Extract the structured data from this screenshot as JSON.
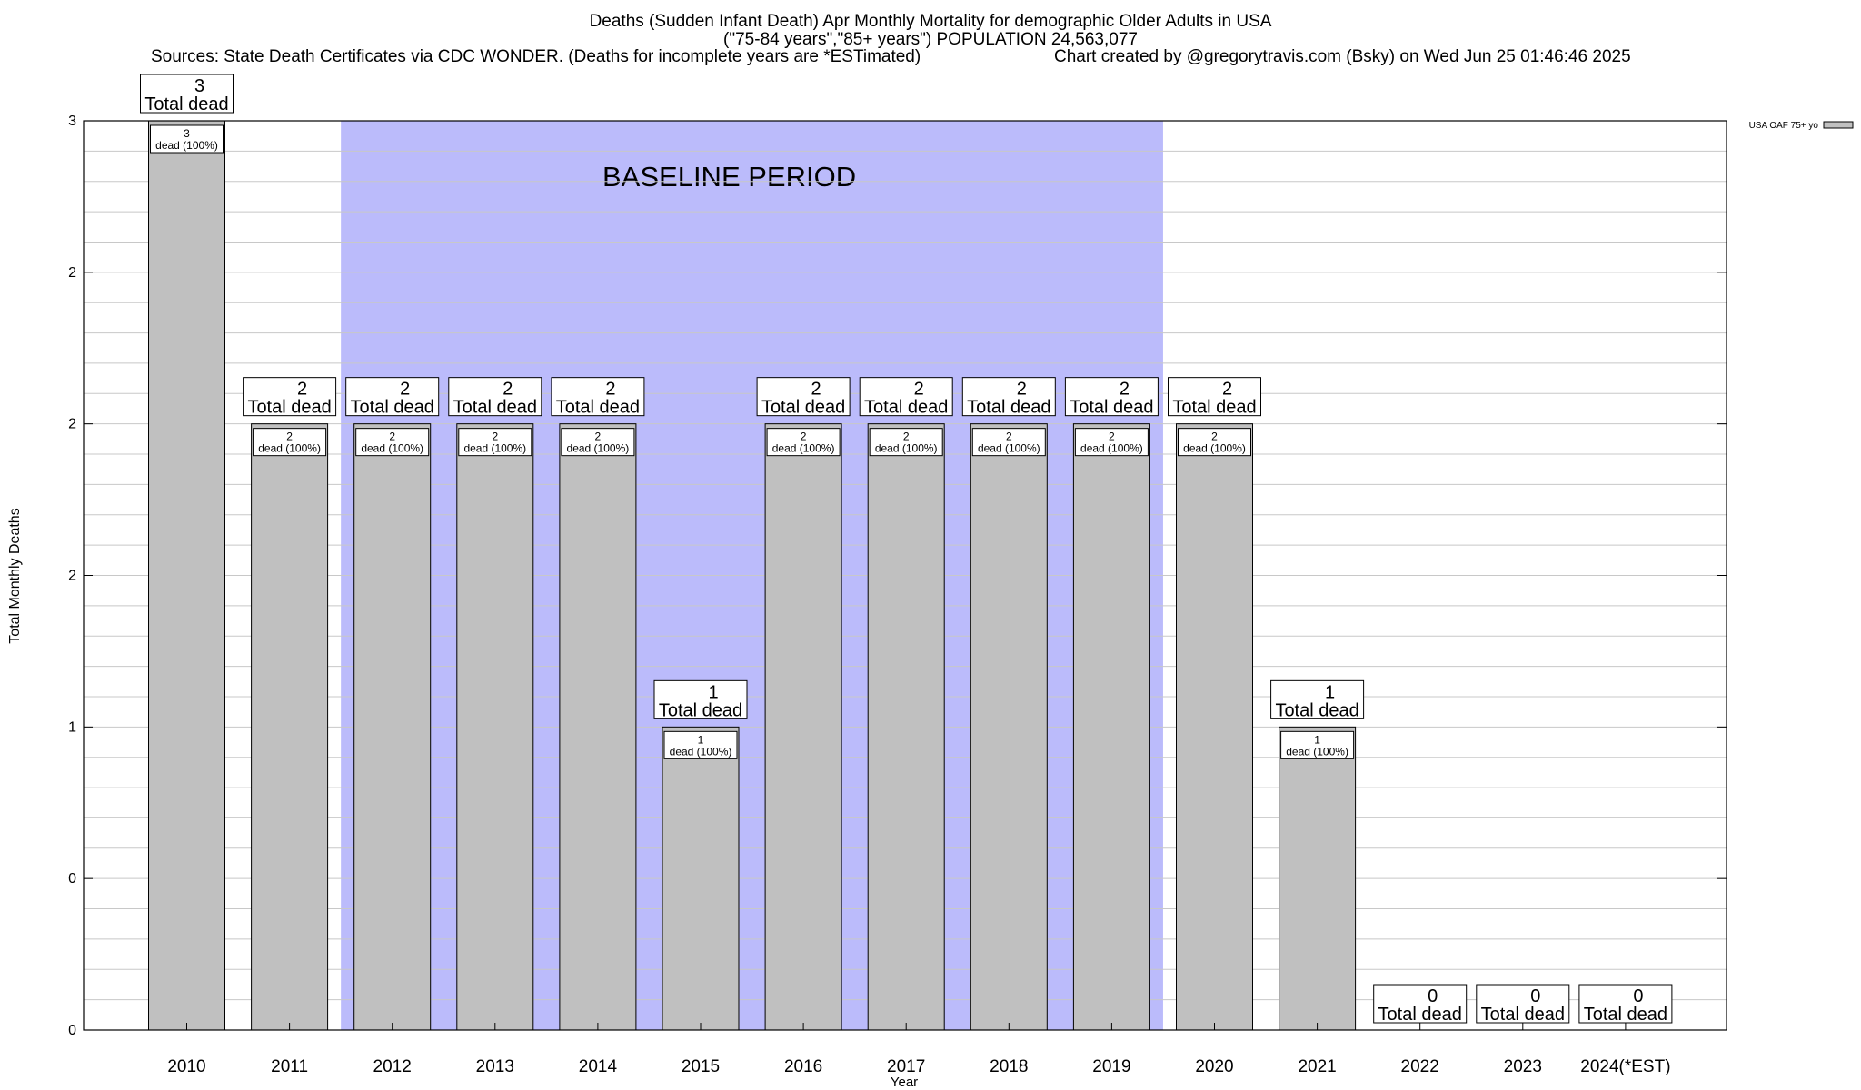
{
  "header": {
    "title_line1": "Deaths (Sudden Infant Death) Apr Monthly Mortality for demographic Older Adults in USA",
    "title_line2": "(\"75-84 years\",\"85+ years\") POPULATION 24,563,077",
    "sources": "Sources: State Death Certificates via CDC WONDER. (Deaths for incomplete years are *ESTimated)",
    "credit": "Chart created by @gregorytravis.com (Bsky) on Wed Jun 25 01:46:46 2025"
  },
  "chart_data": {
    "type": "bar",
    "title": "Deaths (Sudden Infant Death) Apr Monthly Mortality for demographic Older Adults in USA",
    "xlabel": "Year",
    "ylabel": "Total Monthly Deaths",
    "categories": [
      "2010",
      "2011",
      "2012",
      "2013",
      "2014",
      "2015",
      "2016",
      "2017",
      "2018",
      "2019",
      "2020",
      "2021",
      "2022",
      "2023",
      "2024(*EST)"
    ],
    "series": [
      {
        "name": "USA OAF 75+ yo",
        "values": [
          3,
          2,
          2,
          2,
          2,
          1,
          2,
          2,
          2,
          2,
          2,
          1,
          0,
          0,
          0
        ]
      }
    ],
    "top_labels": [
      "3\nTotal dead",
      "2\nTotal dead",
      "2\nTotal dead",
      "2\nTotal dead",
      "2\nTotal dead",
      "1\nTotal dead",
      "2\nTotal dead",
      "2\nTotal dead",
      "2\nTotal dead",
      "2\nTotal dead",
      "2\nTotal dead",
      "1\nTotal dead",
      "0\nTotal dead",
      "0\nTotal dead",
      "0\nTotal dead"
    ],
    "inner_labels": [
      "3\ndead (100%)",
      "2\ndead (100%)",
      "2\ndead (100%)",
      "2\ndead (100%)",
      "2\ndead (100%)",
      "1\ndead (100%)",
      "2\ndead (100%)",
      "2\ndead (100%)",
      "2\ndead (100%)",
      "2\ndead (100%)",
      "2\ndead (100%)",
      "1\ndead (100%)",
      "",
      "",
      ""
    ],
    "ylim": [
      0,
      3
    ],
    "y_gridlines": [
      0,
      0.1,
      0.2,
      0.3,
      0.4,
      0.5,
      0.6,
      0.7,
      0.8,
      0.9,
      1.0,
      1.1,
      1.2,
      1.3,
      1.4,
      1.5,
      1.6,
      1.7,
      1.8,
      1.9,
      2.0,
      2.1,
      2.2,
      2.3,
      2.4,
      2.5,
      2.6,
      2.7,
      2.8,
      2.9,
      3.0
    ],
    "y_ticks": [
      {
        "value": 0,
        "label": "0"
      },
      {
        "value": 0.5,
        "label": "0"
      },
      {
        "value": 1.0,
        "label": "1"
      },
      {
        "value": 1.5,
        "label": "2"
      },
      {
        "value": 2.0,
        "label": "2"
      },
      {
        "value": 2.5,
        "label": "2"
      },
      {
        "value": 3.0,
        "label": "3"
      }
    ],
    "grid": true,
    "legend": {
      "position": "top-right",
      "label": "USA OAF 75+ yo"
    },
    "baseline_period": {
      "label": "BASELINE PERIOD",
      "from": "2012",
      "to": "2019"
    },
    "colors": {
      "bar": "#c0c0c0",
      "baseline": "#bbbbfb",
      "grid": "#c8c8c8"
    }
  }
}
